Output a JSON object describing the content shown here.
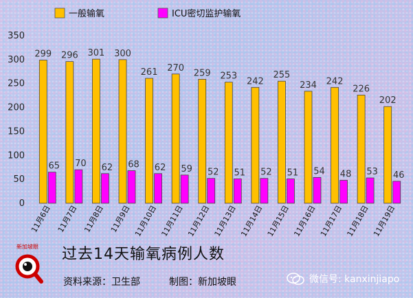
{
  "chart_data": {
    "type": "bar",
    "categories": [
      "11月6日",
      "11月7日",
      "11月8日",
      "11月9日",
      "11月10日",
      "11月11日",
      "11月12日",
      "11月13日",
      "11月14日",
      "11月15日",
      "11月16日",
      "11月17日",
      "11月18日",
      "11月19日"
    ],
    "series": [
      {
        "name": "一般输氧",
        "color": "#ffc000",
        "values": [
          299,
          296,
          301,
          300,
          261,
          270,
          259,
          253,
          242,
          255,
          234,
          242,
          226,
          202
        ]
      },
      {
        "name": "ICU密切监护输氧",
        "color": "#ff00ff",
        "values": [
          65,
          70,
          62,
          68,
          62,
          59,
          52,
          51,
          52,
          51,
          54,
          48,
          53,
          46
        ]
      }
    ],
    "ylim": [
      0,
      350
    ],
    "yticks": [
      0,
      50,
      100,
      150,
      200,
      250,
      300,
      350
    ],
    "grid": false,
    "legend": "top"
  },
  "caption": {
    "title": "过去14天输氧病例人数",
    "source": "资料来源：卫生部",
    "credit": "制图：新加坡眼",
    "logo_text": "新加坡眼",
    "wechat_id": "微信号: kanxinjiapo"
  },
  "icons": {
    "logo": "magnifier-eye-logo-icon",
    "wechat": "wechat-icon"
  }
}
